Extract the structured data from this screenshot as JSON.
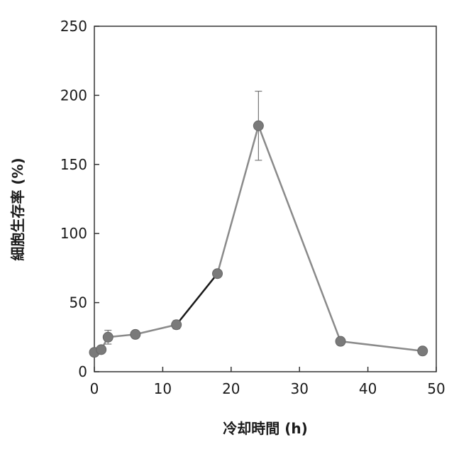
{
  "chart_data": {
    "type": "line",
    "title": "",
    "xlabel": "冷却時間 (h)",
    "ylabel": "細胞生存率 (%)",
    "xlim": [
      0,
      50
    ],
    "ylim": [
      0,
      250
    ],
    "x_ticks": [
      0,
      10,
      20,
      30,
      40,
      50
    ],
    "y_ticks": [
      0,
      50,
      100,
      150,
      200,
      250
    ],
    "grid": false,
    "colors": {
      "line": "#8a8a8a",
      "highlight_segment": "#1a1a1a",
      "marker": "#7a7a7a",
      "axis": "#333333",
      "error_bar": "#777777"
    },
    "series": [
      {
        "x": [
          0,
          1,
          2,
          6,
          12,
          18,
          24,
          36,
          48
        ],
        "y": [
          14,
          16,
          25,
          27,
          34,
          71,
          178,
          22,
          15
        ],
        "error": [
          0,
          0,
          5,
          0,
          3,
          0,
          25,
          0,
          0
        ]
      }
    ],
    "dark_segment": [
      4,
      5
    ]
  }
}
